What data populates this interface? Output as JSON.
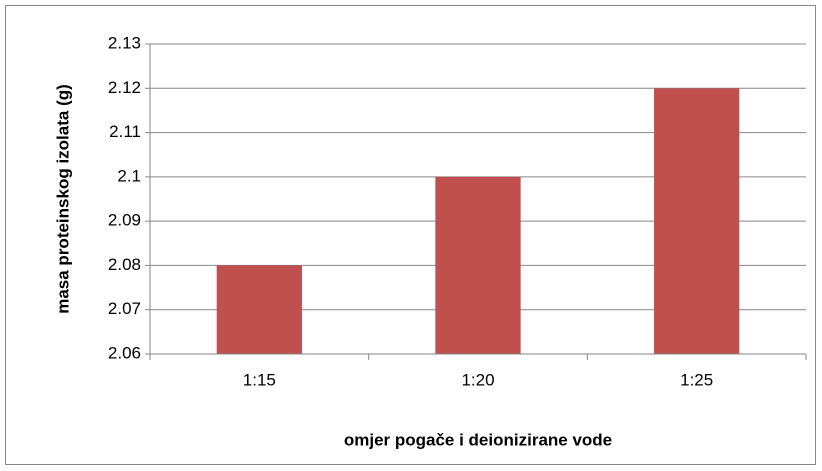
{
  "chart_data": {
    "type": "bar",
    "categories": [
      "1:15",
      "1:20",
      "1:25"
    ],
    "values": [
      2.08,
      2.1,
      2.12
    ],
    "color": "#c0504d",
    "xlabel": "omjer pogače i deionizirane vode",
    "ylabel": "masa proteinskog izolata (g)",
    "ylim": [
      2.06,
      2.13
    ],
    "yticks": [
      2.06,
      2.07,
      2.08,
      2.09,
      2.1,
      2.11,
      2.12,
      2.13
    ],
    "grid": true
  }
}
